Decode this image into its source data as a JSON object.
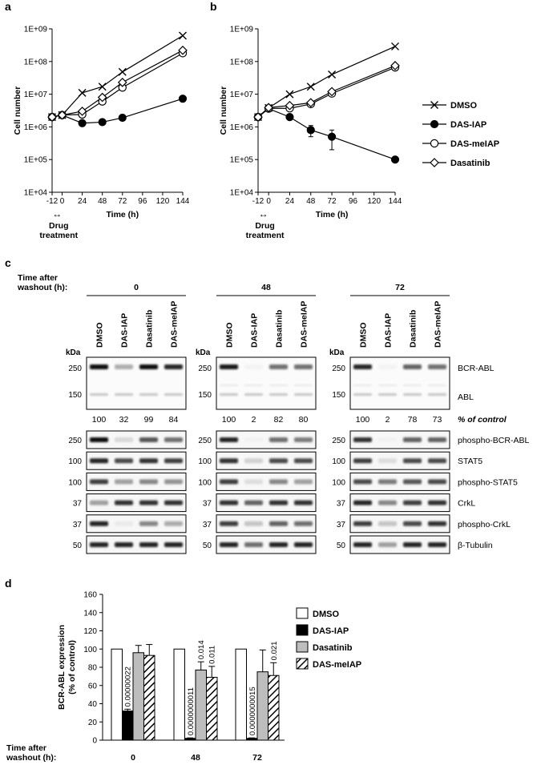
{
  "panels": {
    "a": "a",
    "b": "b",
    "c": "c",
    "d": "d"
  },
  "chart_data": [
    {
      "id": "a",
      "type": "line",
      "ylabel": "Cell number",
      "xlabel": "Time (h)",
      "yscale": "log",
      "ylim": [
        10000,
        1000000000
      ],
      "y_ticks": [
        "1E+04",
        "1E+05",
        "1E+06",
        "1E+07",
        "1E+08",
        "1E+09"
      ],
      "xlim": [
        -12,
        144
      ],
      "x_ticks": [
        "-12",
        "0",
        "24",
        "48",
        "72",
        "96",
        "120",
        "144"
      ],
      "treatment_arrow": "↔",
      "treatment_label": [
        "Drug",
        "treatment"
      ],
      "x": [
        -12,
        0,
        24,
        48,
        72,
        144
      ],
      "series": [
        {
          "name": "DMSO",
          "marker": "x",
          "values": [
            2000000,
            2300000,
            11000000,
            17000000,
            48000000,
            620000000
          ]
        },
        {
          "name": "DAS-IAP",
          "marker": "filled-circle",
          "values": [
            2000000,
            2300000,
            1300000,
            1400000,
            1900000,
            7300000
          ]
        },
        {
          "name": "DAS-meIAP",
          "marker": "open-circle",
          "values": [
            2000000,
            2300000,
            2400000,
            6000000,
            16000000,
            180000000
          ]
        },
        {
          "name": "Dasatinib",
          "marker": "open-diamond",
          "values": [
            2000000,
            2300000,
            3000000,
            8000000,
            23000000,
            220000000
          ]
        }
      ]
    },
    {
      "id": "b",
      "type": "line",
      "ylabel": "Cell number",
      "xlabel": "Time (h)",
      "yscale": "log",
      "ylim": [
        10000,
        1000000000
      ],
      "y_ticks": [
        "1E+04",
        "1E+05",
        "1E+06",
        "1E+07",
        "1E+08",
        "1E+09"
      ],
      "xlim": [
        -12,
        144
      ],
      "x_ticks": [
        "-12",
        "0",
        "24",
        "48",
        "72",
        "96",
        "120",
        "144"
      ],
      "treatment_arrow": "↔",
      "treatment_label": [
        "Drug",
        "treatment"
      ],
      "legend_position": "right",
      "x": [
        -12,
        0,
        24,
        48,
        72,
        144
      ],
      "series": [
        {
          "name": "DMSO",
          "marker": "x",
          "values": [
            2000000,
            3800000,
            10000000,
            17000000,
            40000000,
            290000000
          ]
        },
        {
          "name": "DAS-IAP",
          "marker": "filled-circle",
          "values": [
            2000000,
            3600000,
            2000000,
            800000,
            500000,
            100000
          ],
          "error": [
            0,
            0,
            0,
            300000,
            300000,
            0
          ]
        },
        {
          "name": "DAS-meIAP",
          "marker": "open-circle",
          "values": [
            2000000,
            3700000,
            3700000,
            5000000,
            10500000,
            66000000
          ]
        },
        {
          "name": "Dasatinib",
          "marker": "open-diamond",
          "values": [
            2000000,
            3900000,
            4500000,
            5500000,
            12000000,
            75000000
          ]
        }
      ]
    },
    {
      "id": "d",
      "type": "bar",
      "ylabel_lines": [
        "BCR-ABL expression",
        "(% of control)"
      ],
      "ylim": [
        0,
        160
      ],
      "y_ticks": [
        "0",
        "20",
        "40",
        "60",
        "80",
        "100",
        "120",
        "140",
        "160"
      ],
      "group_title": [
        "Time after",
        "washout (h):"
      ],
      "categories": [
        "0",
        "48",
        "72"
      ],
      "series": [
        {
          "name": "DMSO",
          "fill": "white",
          "values": [
            100,
            100,
            100
          ],
          "error": [
            0,
            0,
            0
          ]
        },
        {
          "name": "DAS-IAP",
          "fill": "black",
          "values": [
            32,
            2,
            2
          ],
          "error": [
            2,
            0.5,
            0.5
          ]
        },
        {
          "name": "Dasatinib",
          "fill": "gray",
          "values": [
            96,
            77,
            75
          ],
          "error": [
            8,
            9,
            24
          ]
        },
        {
          "name": "DAS-meIAP",
          "fill": "hatched",
          "values": [
            93,
            69,
            71
          ],
          "error": [
            12,
            12,
            14
          ]
        }
      ],
      "pvalues": [
        {
          "group": 0,
          "series": 1,
          "text": "0.00000022"
        },
        {
          "group": 1,
          "series": 1,
          "text": "0.0000000011"
        },
        {
          "group": 1,
          "series": 2,
          "text": "0.014"
        },
        {
          "group": 1,
          "series": 3,
          "text": "0.011"
        },
        {
          "group": 2,
          "series": 1,
          "text": "0.0000000015"
        },
        {
          "group": 2,
          "series": 3,
          "text": "0.021"
        }
      ]
    }
  ],
  "western": {
    "header_label": [
      "Time after",
      "washout (h):"
    ],
    "lanes": [
      "DMSO",
      "DAS-IAP",
      "Dasatinib",
      "DAS-meIAP"
    ],
    "kda_label": "kDa",
    "quant_label": "% of control",
    "groups": [
      {
        "time": "0",
        "quant": [
          "100",
          "32",
          "99",
          "84"
        ]
      },
      {
        "time": "48",
        "quant": [
          "100",
          "2",
          "82",
          "80"
        ]
      },
      {
        "time": "72",
        "quant": [
          "100",
          "2",
          "78",
          "73"
        ]
      }
    ],
    "main_blot": {
      "markers": [
        "250",
        "150"
      ],
      "label_bcr": "BCR-ABL",
      "label_abl": "ABL",
      "bcr_intensity": [
        [
          0.95,
          0.3,
          0.95,
          0.85
        ],
        [
          0.9,
          0.03,
          0.55,
          0.55
        ],
        [
          0.85,
          0.03,
          0.6,
          0.55
        ]
      ],
      "abl_intensity": [
        0.22,
        0.22,
        0.22,
        0.22
      ]
    },
    "strips": [
      {
        "marker": "250",
        "label": "phospho-BCR-ABL",
        "intensity": [
          [
            0.95,
            0.12,
            0.65,
            0.55
          ],
          [
            0.85,
            0.02,
            0.55,
            0.5
          ],
          [
            0.8,
            0.02,
            0.6,
            0.6
          ]
        ]
      },
      {
        "marker": "100",
        "label": "STAT5",
        "intensity": [
          [
            0.85,
            0.7,
            0.8,
            0.75
          ],
          [
            0.8,
            0.15,
            0.7,
            0.7
          ],
          [
            0.75,
            0.1,
            0.7,
            0.7
          ]
        ]
      },
      {
        "marker": "100",
        "label": "phospho-STAT5",
        "intensity": [
          [
            0.75,
            0.35,
            0.45,
            0.4
          ],
          [
            0.75,
            0.1,
            0.45,
            0.35
          ],
          [
            0.7,
            0.5,
            0.65,
            0.7
          ]
        ]
      },
      {
        "marker": "37",
        "label": "CrkL",
        "intensity": [
          [
            0.35,
            0.8,
            0.8,
            0.8
          ],
          [
            0.8,
            0.6,
            0.8,
            0.8
          ],
          [
            0.85,
            0.45,
            0.75,
            0.8
          ]
        ]
      },
      {
        "marker": "37",
        "label": "phospho-CrkL",
        "intensity": [
          [
            0.85,
            0.05,
            0.45,
            0.3
          ],
          [
            0.75,
            0.2,
            0.6,
            0.55
          ],
          [
            0.75,
            0.2,
            0.7,
            0.8
          ]
        ]
      },
      {
        "marker": "50",
        "label": "β-Tubulin",
        "intensity": [
          [
            0.85,
            0.85,
            0.85,
            0.85
          ],
          [
            0.85,
            0.55,
            0.85,
            0.85
          ],
          [
            0.85,
            0.35,
            0.85,
            0.85
          ]
        ]
      }
    ]
  }
}
